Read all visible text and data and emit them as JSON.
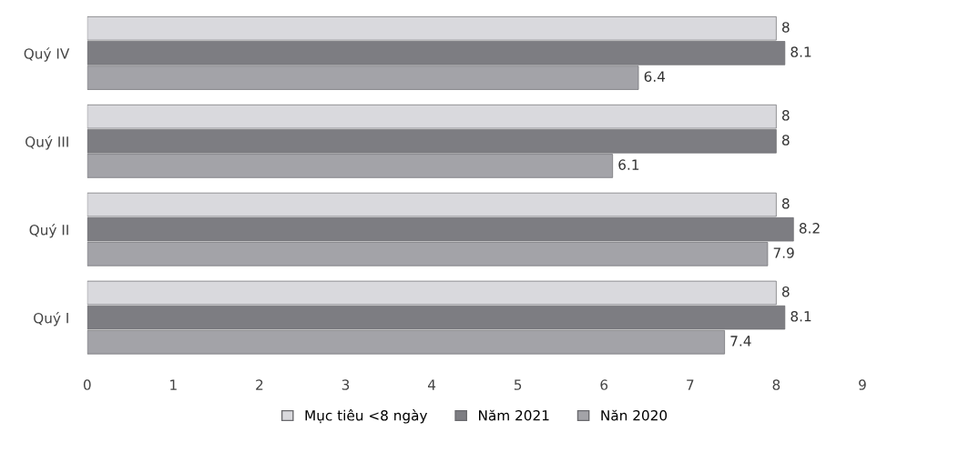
{
  "chart_data": {
    "type": "bar",
    "orientation": "horizontal",
    "categories": [
      "Quý IV",
      "Quý III",
      "Quý II",
      "Quý I"
    ],
    "series": [
      {
        "name": "Mục tiêu <8 ngày",
        "color": "#d9d9dd",
        "values": [
          8,
          8,
          8,
          8
        ]
      },
      {
        "name": "Năm 2021",
        "color": "#7d7d82",
        "values": [
          8.1,
          8,
          8.2,
          8.1
        ]
      },
      {
        "name": "Năn 2020",
        "color": "#a3a3a8",
        "values": [
          6.4,
          6.1,
          7.9,
          7.4
        ]
      }
    ],
    "xlim": [
      0,
      9
    ],
    "xticks": [
      0,
      1,
      2,
      3,
      4,
      5,
      6,
      7,
      8,
      9
    ],
    "data_labels": true,
    "legend": "bottom",
    "grid": false
  }
}
